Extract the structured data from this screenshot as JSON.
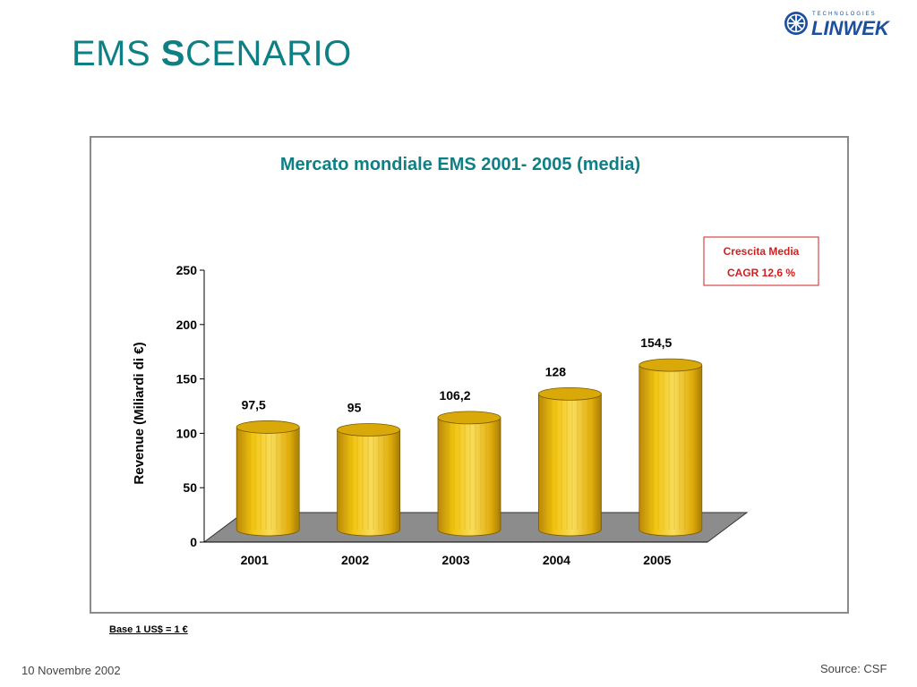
{
  "slide": {
    "title_prefix": "EMS ",
    "title_big_letter": "S",
    "title_rest": "CENARIO",
    "footnote": "Base 1 US$ = 1 €",
    "date": "10 Novembre 2002",
    "source": "Source: CSF"
  },
  "logo": {
    "tagline": "TECHNOLOGIES",
    "name": "LINWEK",
    "color": "#1c4f9c"
  },
  "colors": {
    "title": "#0f7f86",
    "bar": "#f1c40f",
    "bar_dark": "#b8860b",
    "floor": "#8c8c8c",
    "annotation": "#d11f1f"
  },
  "chart_data": {
    "type": "bar",
    "title": "Mercato mondiale EMS 2001- 2005 (media)",
    "categories": [
      "2001",
      "2002",
      "2003",
      "2004",
      "2005"
    ],
    "values": [
      97.5,
      95,
      106.2,
      128,
      154.5
    ],
    "data_labels": [
      "97,5",
      "95",
      "106,2",
      "128",
      "154,5"
    ],
    "xlabel": "",
    "ylabel": "Revenue (Miliardi di €)",
    "ylim": [
      0,
      250
    ],
    "yticks": [
      0,
      50,
      100,
      150,
      200,
      250
    ],
    "grid": false,
    "legend": "none",
    "annotation": {
      "line1": "Crescita Media",
      "line2": "CAGR  12,6  %",
      "position": "top-right"
    }
  }
}
